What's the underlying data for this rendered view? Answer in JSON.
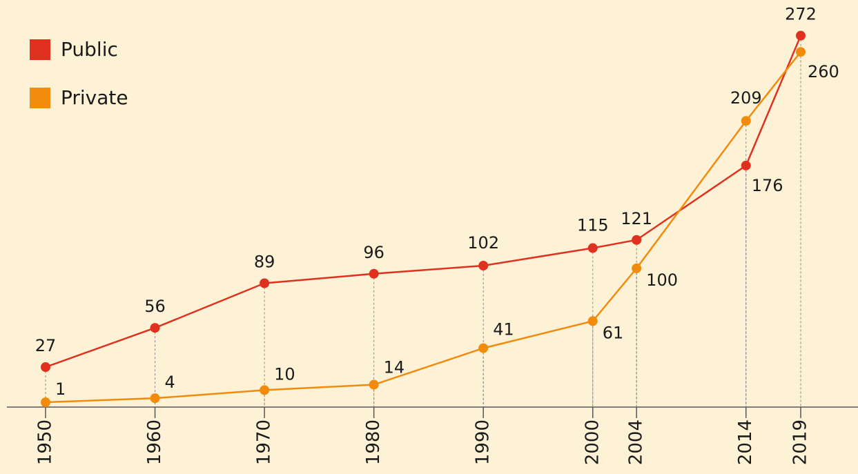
{
  "chart_data": {
    "type": "line",
    "x": [
      1950,
      1960,
      1970,
      1980,
      1990,
      2000,
      2004,
      2014,
      2019
    ],
    "series": [
      {
        "name": "Public",
        "color": "#e0301e",
        "values": [
          27,
          56,
          89,
          96,
          102,
          115,
          121,
          176,
          272
        ]
      },
      {
        "name": "Private",
        "color": "#f28a0c",
        "values": [
          1,
          4,
          10,
          14,
          41,
          61,
          100,
          209,
          260
        ]
      }
    ],
    "xlim": [
      1950,
      2019
    ],
    "xticks": [
      1950,
      1960,
      1970,
      1980,
      1990,
      2000,
      2004,
      2014,
      2019
    ],
    "ylim": [
      0,
      280
    ],
    "legend": "upper left"
  }
}
